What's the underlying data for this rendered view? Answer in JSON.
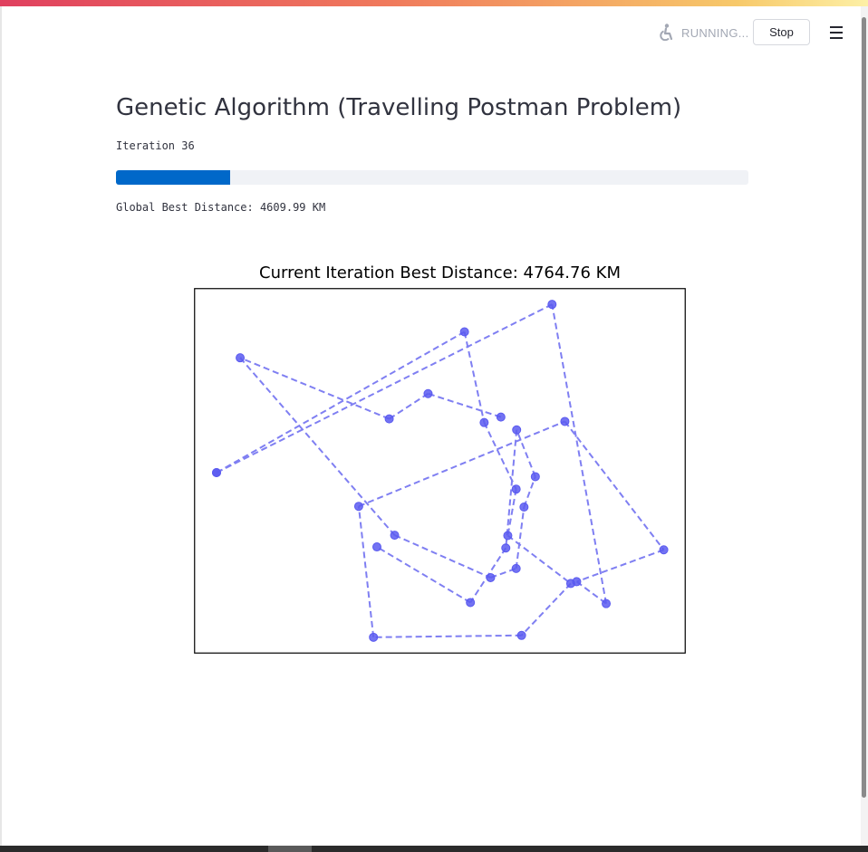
{
  "header": {
    "status_text": "RUNNING...",
    "stop_label": "Stop",
    "status_icon": "running-figure-icon",
    "menu_icon": "hamburger-menu-icon"
  },
  "main": {
    "title": "Genetic Algorithm (Travelling Postman Problem)",
    "iteration_text": "Iteration 36",
    "progress_fraction": 0.18,
    "global_best_text": "Global Best Distance: 4609.99 KM"
  },
  "colors": {
    "progress_fill": "#0068c9",
    "route_line": "#7f7ff2",
    "city_marker": "#5a5af0"
  },
  "chart_data": {
    "type": "line",
    "title": "Current Iteration Best Distance: 4764.76 KM",
    "xlabel": "",
    "ylabel": "",
    "axes_visible": false,
    "grid": false,
    "line_style": "dashed",
    "marker": "circle",
    "xlim": [
      0,
      100
    ],
    "ylim": [
      0,
      100
    ],
    "route": [
      {
        "x": 4.6,
        "y": 50.5
      },
      {
        "x": 55.0,
        "y": 12.0
      },
      {
        "x": 59.0,
        "y": 36.8
      },
      {
        "x": 65.5,
        "y": 55.0
      },
      {
        "x": 63.8,
        "y": 67.7
      },
      {
        "x": 76.6,
        "y": 80.8
      },
      {
        "x": 66.6,
        "y": 95.0
      },
      {
        "x": 36.5,
        "y": 95.5
      },
      {
        "x": 33.5,
        "y": 59.7
      },
      {
        "x": 75.4,
        "y": 36.5
      },
      {
        "x": 95.5,
        "y": 71.6
      },
      {
        "x": 77.8,
        "y": 80.3
      },
      {
        "x": 83.8,
        "y": 86.3
      },
      {
        "x": 72.8,
        "y": 4.5
      },
      {
        "x": 4.6,
        "y": 50.5
      }
    ],
    "route_b": [
      {
        "x": 62.4,
        "y": 35.3
      },
      {
        "x": 47.6,
        "y": 28.9
      },
      {
        "x": 39.7,
        "y": 35.8
      },
      {
        "x": 9.4,
        "y": 19.1
      },
      {
        "x": 40.8,
        "y": 67.6
      },
      {
        "x": 60.3,
        "y": 79.2
      },
      {
        "x": 65.5,
        "y": 76.7
      },
      {
        "x": 67.1,
        "y": 59.9
      },
      {
        "x": 69.4,
        "y": 51.6
      },
      {
        "x": 65.6,
        "y": 38.8
      },
      {
        "x": 63.4,
        "y": 71.1
      },
      {
        "x": 56.2,
        "y": 86.0
      },
      {
        "x": 37.2,
        "y": 70.8
      }
    ]
  }
}
